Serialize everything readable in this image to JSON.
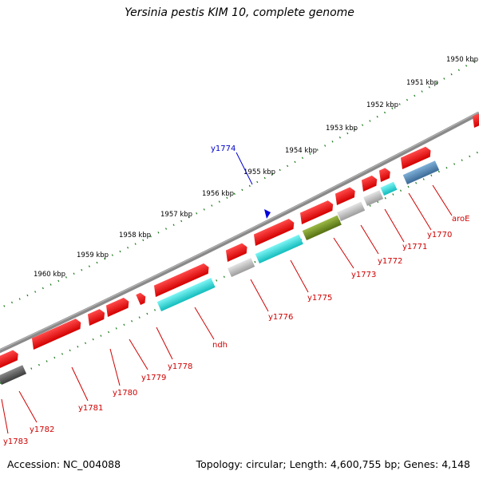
{
  "title": "Yersinia pestis KIM 10, complete genome",
  "footer": {
    "accession": "Accession: NC_004088",
    "summary": "Topology: circular; Length: 4,600,755 bp; Genes: 4,148"
  },
  "scale_labels": [
    "1950 kbp",
    "1951 kbp",
    "1952 kbp",
    "1953 kbp",
    "1954 kbp",
    "1955 kbp",
    "1956 kbp",
    "1957 kbp",
    "1958 kbp",
    "1959 kbp",
    "1960 kbp"
  ],
  "highlight": {
    "label": "y1774",
    "color": "#0000cc"
  },
  "gene_labels": [
    "aroE",
    "y1770",
    "y1771",
    "y1772",
    "y1773",
    "y1775",
    "y1776",
    "ndh",
    "y1778",
    "y1779",
    "y1780",
    "y1781",
    "y1782",
    "y1783"
  ],
  "colors": {
    "backbone": "#777777",
    "tick": "#1a7a1a",
    "gene_red": "#ee1111",
    "cyan": "#22cccc",
    "grey": "#b8b8b8",
    "olive": "#6e8c1e",
    "steel": "#4a7fae",
    "dark": "#555555",
    "label_red": "#d00000"
  }
}
